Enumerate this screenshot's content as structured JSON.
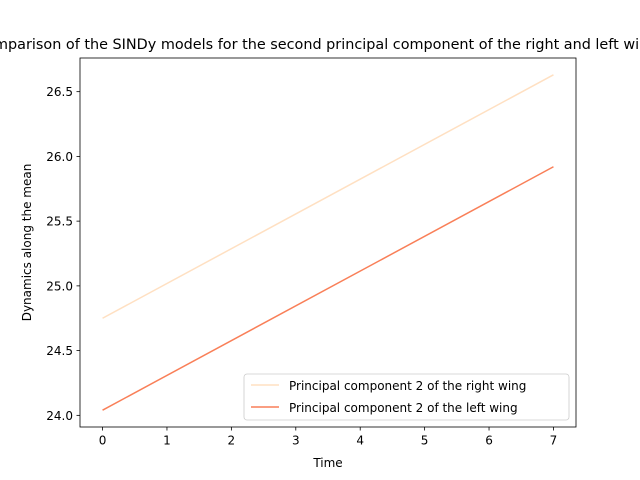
{
  "chart_data": {
    "type": "line",
    "title": "Comparison of the SINDy models for the second principal component of the right and left wings",
    "xlabel": "Time",
    "ylabel": "Dynamics along the mean",
    "xlim": [
      -0.35,
      7.35
    ],
    "ylim": [
      23.91,
      26.76
    ],
    "xticks": [
      0,
      1,
      2,
      3,
      4,
      5,
      6,
      7
    ],
    "yticks": [
      24.0,
      24.5,
      25.0,
      25.5,
      26.0,
      26.5
    ],
    "ytick_labels": [
      "24.0",
      "24.5",
      "25.0",
      "25.5",
      "26.0",
      "26.5"
    ],
    "legend_position": "lower right",
    "grid": false,
    "series": [
      {
        "name": "Principal component 2 of the right wing",
        "color": "#ffe0c2",
        "x": [
          0,
          7
        ],
        "y": [
          24.75,
          26.63
        ]
      },
      {
        "name": "Principal component 2 of the left wing",
        "color": "#f97f58",
        "x": [
          0,
          7
        ],
        "y": [
          24.04,
          25.92
        ]
      }
    ]
  }
}
